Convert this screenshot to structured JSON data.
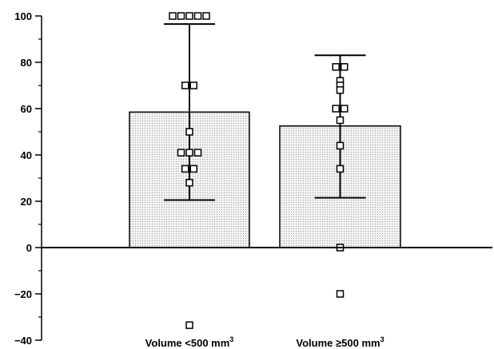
{
  "chart_data": {
    "type": "bar",
    "title": "",
    "xlabel": "",
    "ylabel": "",
    "ylim": [
      -40,
      100
    ],
    "yticks": [
      -40,
      -20,
      0,
      20,
      40,
      60,
      80,
      100
    ],
    "categories": [
      {
        "label": "Volume <500 mm",
        "sup": "3"
      },
      {
        "label": "Volume ≥500 mm",
        "sup": "3"
      }
    ],
    "values": [
      58.5,
      52.5
    ],
    "error_bars": [
      {
        "upper": 96.5,
        "lower": 20.5
      },
      {
        "upper": 83,
        "lower": 21.5
      }
    ],
    "points": [
      [
        100,
        100,
        100,
        100,
        100,
        70,
        70,
        50,
        41,
        41,
        41,
        34,
        34,
        28,
        -33.5
      ],
      [
        78,
        78,
        72,
        70,
        68,
        60,
        60,
        55,
        44,
        34,
        0,
        -20
      ]
    ],
    "bar_fill": "#ececec",
    "bar_stroke": "#000000"
  }
}
